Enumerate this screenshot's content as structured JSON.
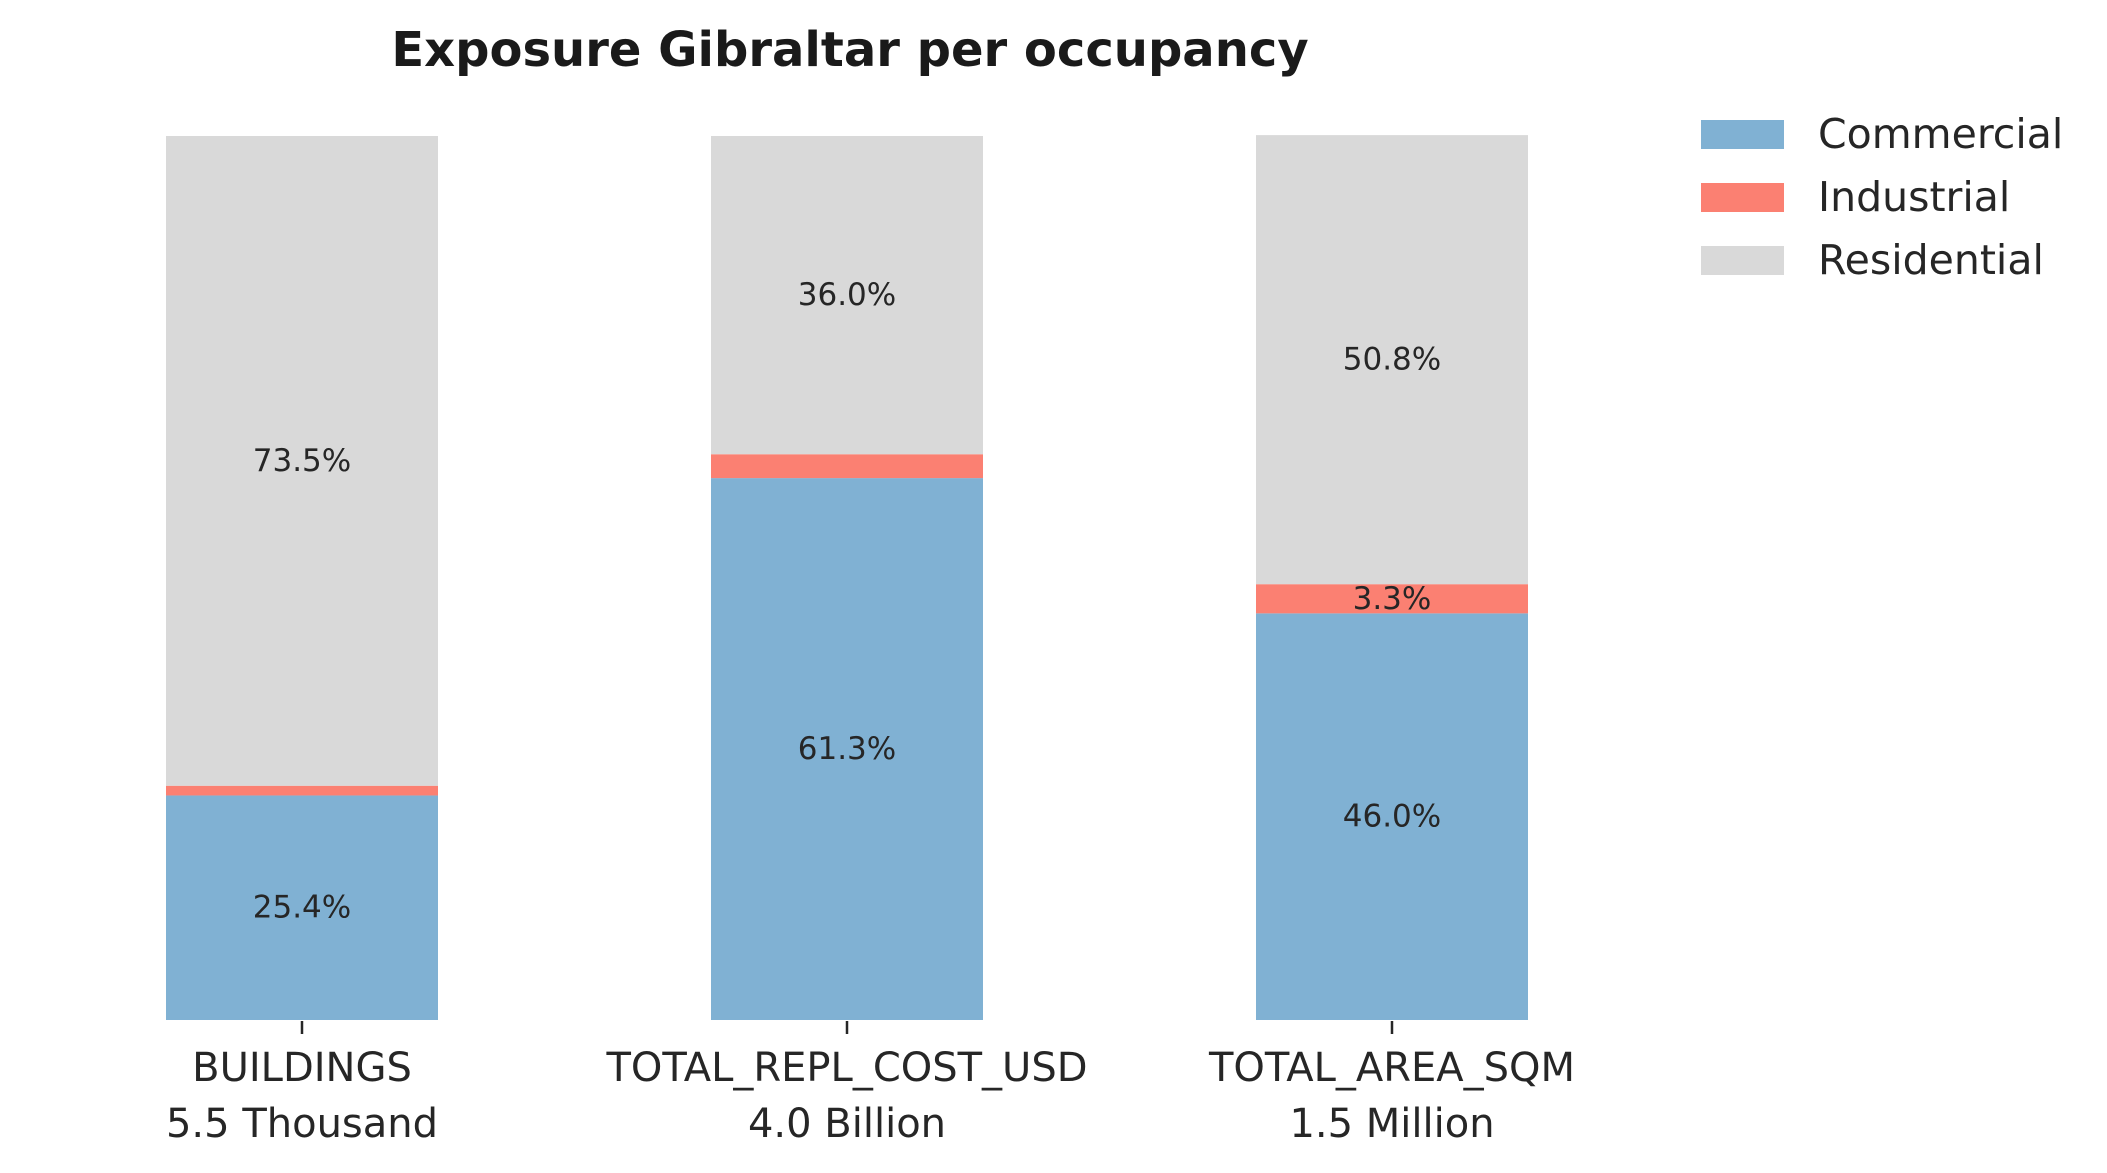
{
  "chart_data": {
    "type": "bar",
    "stacked": true,
    "normalized": true,
    "title": "Exposure Gibraltar per occupancy",
    "xlabel": "",
    "ylabel": "",
    "ylim": [
      0,
      100
    ],
    "grid": false,
    "legend_position": "top-right",
    "categories": [
      {
        "name": "BUILDINGS",
        "total": "5.5 Thousand"
      },
      {
        "name": "TOTAL_REPL_COST_USD",
        "total": "4.0 Billion"
      },
      {
        "name": "TOTAL_AREA_SQM",
        "total": "1.5 Million"
      }
    ],
    "series": [
      {
        "name": "Commercial",
        "color": "#80b1d3",
        "values": [
          25.4,
          61.3,
          46.0
        ],
        "labels": [
          "25.4%",
          "61.3%",
          "46.0%"
        ]
      },
      {
        "name": "Industrial",
        "color": "#fb8072",
        "values": [
          1.1,
          2.7,
          3.3
        ],
        "labels": [
          "",
          "",
          "3.3%"
        ]
      },
      {
        "name": "Residential",
        "color": "#d9d9d9",
        "values": [
          73.5,
          36.0,
          50.8
        ],
        "labels": [
          "73.5%",
          "36.0%",
          "50.8%"
        ]
      }
    ]
  }
}
